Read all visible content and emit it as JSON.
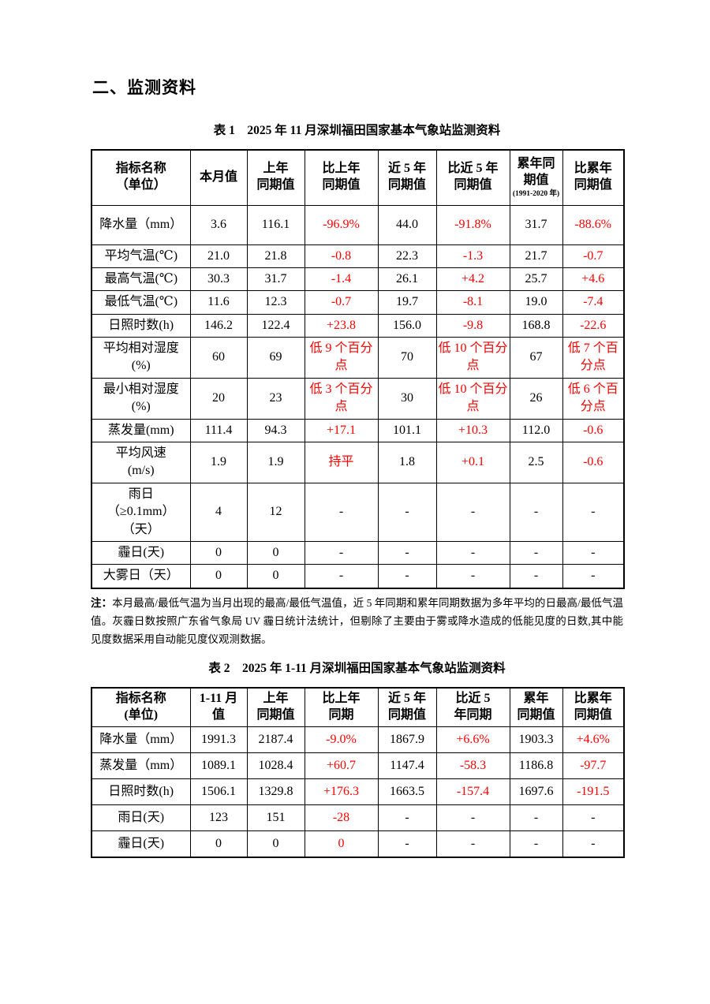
{
  "page": {
    "title": "二、监测资料"
  },
  "colors": {
    "comparison_red": "#ff0000",
    "text": "#000000",
    "border": "#000000"
  },
  "table1": {
    "caption": "表 1　2025 年 11 月深圳福田国家基本气象站监测资料",
    "headers": [
      {
        "t": "指标名称\n（单位）"
      },
      {
        "t": "本月值"
      },
      {
        "t": "上年\n同期值"
      },
      {
        "t": "比上年\n同期值"
      },
      {
        "t": "近 5 年\n同期值"
      },
      {
        "t": "比近 5 年\n同期值"
      },
      {
        "t": "累年同\n期值",
        "sub": "(1991-2020 年)"
      },
      {
        "t": "比累年\n同期值"
      }
    ],
    "rows": [
      {
        "label": "降水量（mm）",
        "cells": [
          {
            "t": "3.6"
          },
          {
            "t": "116.1"
          },
          {
            "t": "-96.9%",
            "c": "red"
          },
          {
            "t": "44.0"
          },
          {
            "t": "-91.8%",
            "c": "red"
          },
          {
            "t": "31.7"
          },
          {
            "t": "-88.6%",
            "c": "red"
          }
        ]
      },
      {
        "label": "平均气温(℃)",
        "cells": [
          {
            "t": "21.0"
          },
          {
            "t": "21.8"
          },
          {
            "t": "-0.8",
            "c": "red"
          },
          {
            "t": "22.3"
          },
          {
            "t": "-1.3",
            "c": "red"
          },
          {
            "t": "21.7"
          },
          {
            "t": "-0.7",
            "c": "red"
          }
        ]
      },
      {
        "label": "最高气温(℃)",
        "cells": [
          {
            "t": "30.3"
          },
          {
            "t": "31.7"
          },
          {
            "t": "-1.4",
            "c": "red"
          },
          {
            "t": "26.1"
          },
          {
            "t": "+4.2",
            "c": "red"
          },
          {
            "t": "25.7"
          },
          {
            "t": "+4.6",
            "c": "red"
          }
        ]
      },
      {
        "label": "最低气温(℃)",
        "cells": [
          {
            "t": "11.6"
          },
          {
            "t": "12.3"
          },
          {
            "t": "-0.7",
            "c": "red"
          },
          {
            "t": "19.7"
          },
          {
            "t": "-8.1",
            "c": "red"
          },
          {
            "t": "19.0"
          },
          {
            "t": "-7.4",
            "c": "red"
          }
        ]
      },
      {
        "label": "日照时数(h)",
        "cells": [
          {
            "t": "146.2"
          },
          {
            "t": "122.4"
          },
          {
            "t": "+23.8",
            "c": "red"
          },
          {
            "t": "156.0"
          },
          {
            "t": "-9.8",
            "c": "red"
          },
          {
            "t": "168.8"
          },
          {
            "t": "-22.6",
            "c": "red"
          }
        ]
      },
      {
        "label": "平均相对湿度\n(%)",
        "cells": [
          {
            "t": "60"
          },
          {
            "t": "69"
          },
          {
            "t": "低 9 个百分点",
            "c": "red"
          },
          {
            "t": "70"
          },
          {
            "t": "低 10 个百分点",
            "c": "red"
          },
          {
            "t": "67"
          },
          {
            "t": "低 7 个百分点",
            "c": "red"
          }
        ]
      },
      {
        "label": "最小相对湿度\n(%)",
        "cells": [
          {
            "t": "20"
          },
          {
            "t": "23"
          },
          {
            "t": "低 3 个百分点",
            "c": "red"
          },
          {
            "t": "30"
          },
          {
            "t": "低 10 个百分点",
            "c": "red"
          },
          {
            "t": "26"
          },
          {
            "t": "低 6 个百分点",
            "c": "red"
          }
        ]
      },
      {
        "label": "蒸发量(mm)",
        "cells": [
          {
            "t": "111.4"
          },
          {
            "t": "94.3"
          },
          {
            "t": "+17.1",
            "c": "red"
          },
          {
            "t": "101.1"
          },
          {
            "t": "+10.3",
            "c": "red"
          },
          {
            "t": "112.0"
          },
          {
            "t": "-0.6",
            "c": "red"
          }
        ]
      },
      {
        "label": "平均风速\n(m/s)",
        "cells": [
          {
            "t": "1.9"
          },
          {
            "t": "1.9"
          },
          {
            "t": "持平",
            "c": "red"
          },
          {
            "t": "1.8"
          },
          {
            "t": "+0.1",
            "c": "red"
          },
          {
            "t": "2.5"
          },
          {
            "t": "-0.6",
            "c": "red"
          }
        ]
      },
      {
        "label": "雨日\n（≥0.1mm）\n（天）",
        "cells": [
          {
            "t": "4"
          },
          {
            "t": "12"
          },
          {
            "t": "-"
          },
          {
            "t": "-"
          },
          {
            "t": "-"
          },
          {
            "t": "-"
          },
          {
            "t": "-"
          }
        ]
      },
      {
        "label": "霾日(天)",
        "cells": [
          {
            "t": "0"
          },
          {
            "t": "0"
          },
          {
            "t": "-"
          },
          {
            "t": "-"
          },
          {
            "t": "-"
          },
          {
            "t": "-"
          },
          {
            "t": "-"
          }
        ]
      },
      {
        "label": "大雾日（天）",
        "cells": [
          {
            "t": "0"
          },
          {
            "t": "0"
          },
          {
            "t": "-"
          },
          {
            "t": "-"
          },
          {
            "t": "-"
          },
          {
            "t": "-"
          },
          {
            "t": "-"
          }
        ]
      }
    ]
  },
  "note": {
    "label": "注：",
    "text": "本月最高/最低气温为当月出现的最高/最低气温值，近 5 年同期和累年同期数据为多年平均的日最高/最低气温值。灰霾日数按照广东省气象局 UV 霾日统计法统计，但剔除了主要由于雾或降水造成的低能见度的日数,其中能见度数据采用自动能见度仪观测数据。"
  },
  "table2": {
    "caption": "表 2　2025 年 1-11 月深圳福田国家基本气象站监测资料",
    "headers": [
      {
        "t": "指标名称\n(单位)"
      },
      {
        "t": "1-11 月\n值"
      },
      {
        "t": "上年\n同期值"
      },
      {
        "t": "比上年\n同期"
      },
      {
        "t": "近 5 年\n同期值"
      },
      {
        "t": "比近 5\n年同期"
      },
      {
        "t": "累年\n同期值"
      },
      {
        "t": "比累年\n同期值"
      }
    ],
    "rows": [
      {
        "label": "降水量（mm）",
        "cells": [
          {
            "t": "1991.3"
          },
          {
            "t": "2187.4"
          },
          {
            "t": "-9.0%",
            "c": "red"
          },
          {
            "t": "1867.9"
          },
          {
            "t": "+6.6%",
            "c": "red"
          },
          {
            "t": "1903.3"
          },
          {
            "t": "+4.6%",
            "c": "red"
          }
        ]
      },
      {
        "label": "蒸发量（mm）",
        "cells": [
          {
            "t": "1089.1"
          },
          {
            "t": "1028.4"
          },
          {
            "t": "+60.7",
            "c": "red"
          },
          {
            "t": "1147.4"
          },
          {
            "t": "-58.3",
            "c": "red"
          },
          {
            "t": "1186.8"
          },
          {
            "t": "-97.7",
            "c": "red"
          }
        ]
      },
      {
        "label": "日照时数(h)",
        "cells": [
          {
            "t": "1506.1"
          },
          {
            "t": "1329.8"
          },
          {
            "t": "+176.3",
            "c": "red"
          },
          {
            "t": "1663.5"
          },
          {
            "t": "-157.4",
            "c": "red"
          },
          {
            "t": "1697.6"
          },
          {
            "t": "-191.5",
            "c": "red"
          }
        ]
      },
      {
        "label": "雨日(天)",
        "cells": [
          {
            "t": "123"
          },
          {
            "t": "151"
          },
          {
            "t": "-28",
            "c": "red"
          },
          {
            "t": "-"
          },
          {
            "t": "-"
          },
          {
            "t": "-"
          },
          {
            "t": "-"
          }
        ]
      },
      {
        "label": "霾日(天)",
        "cells": [
          {
            "t": "0"
          },
          {
            "t": "0"
          },
          {
            "t": "0",
            "c": "red"
          },
          {
            "t": "-"
          },
          {
            "t": "-"
          },
          {
            "t": "-"
          },
          {
            "t": "-"
          }
        ]
      }
    ]
  }
}
